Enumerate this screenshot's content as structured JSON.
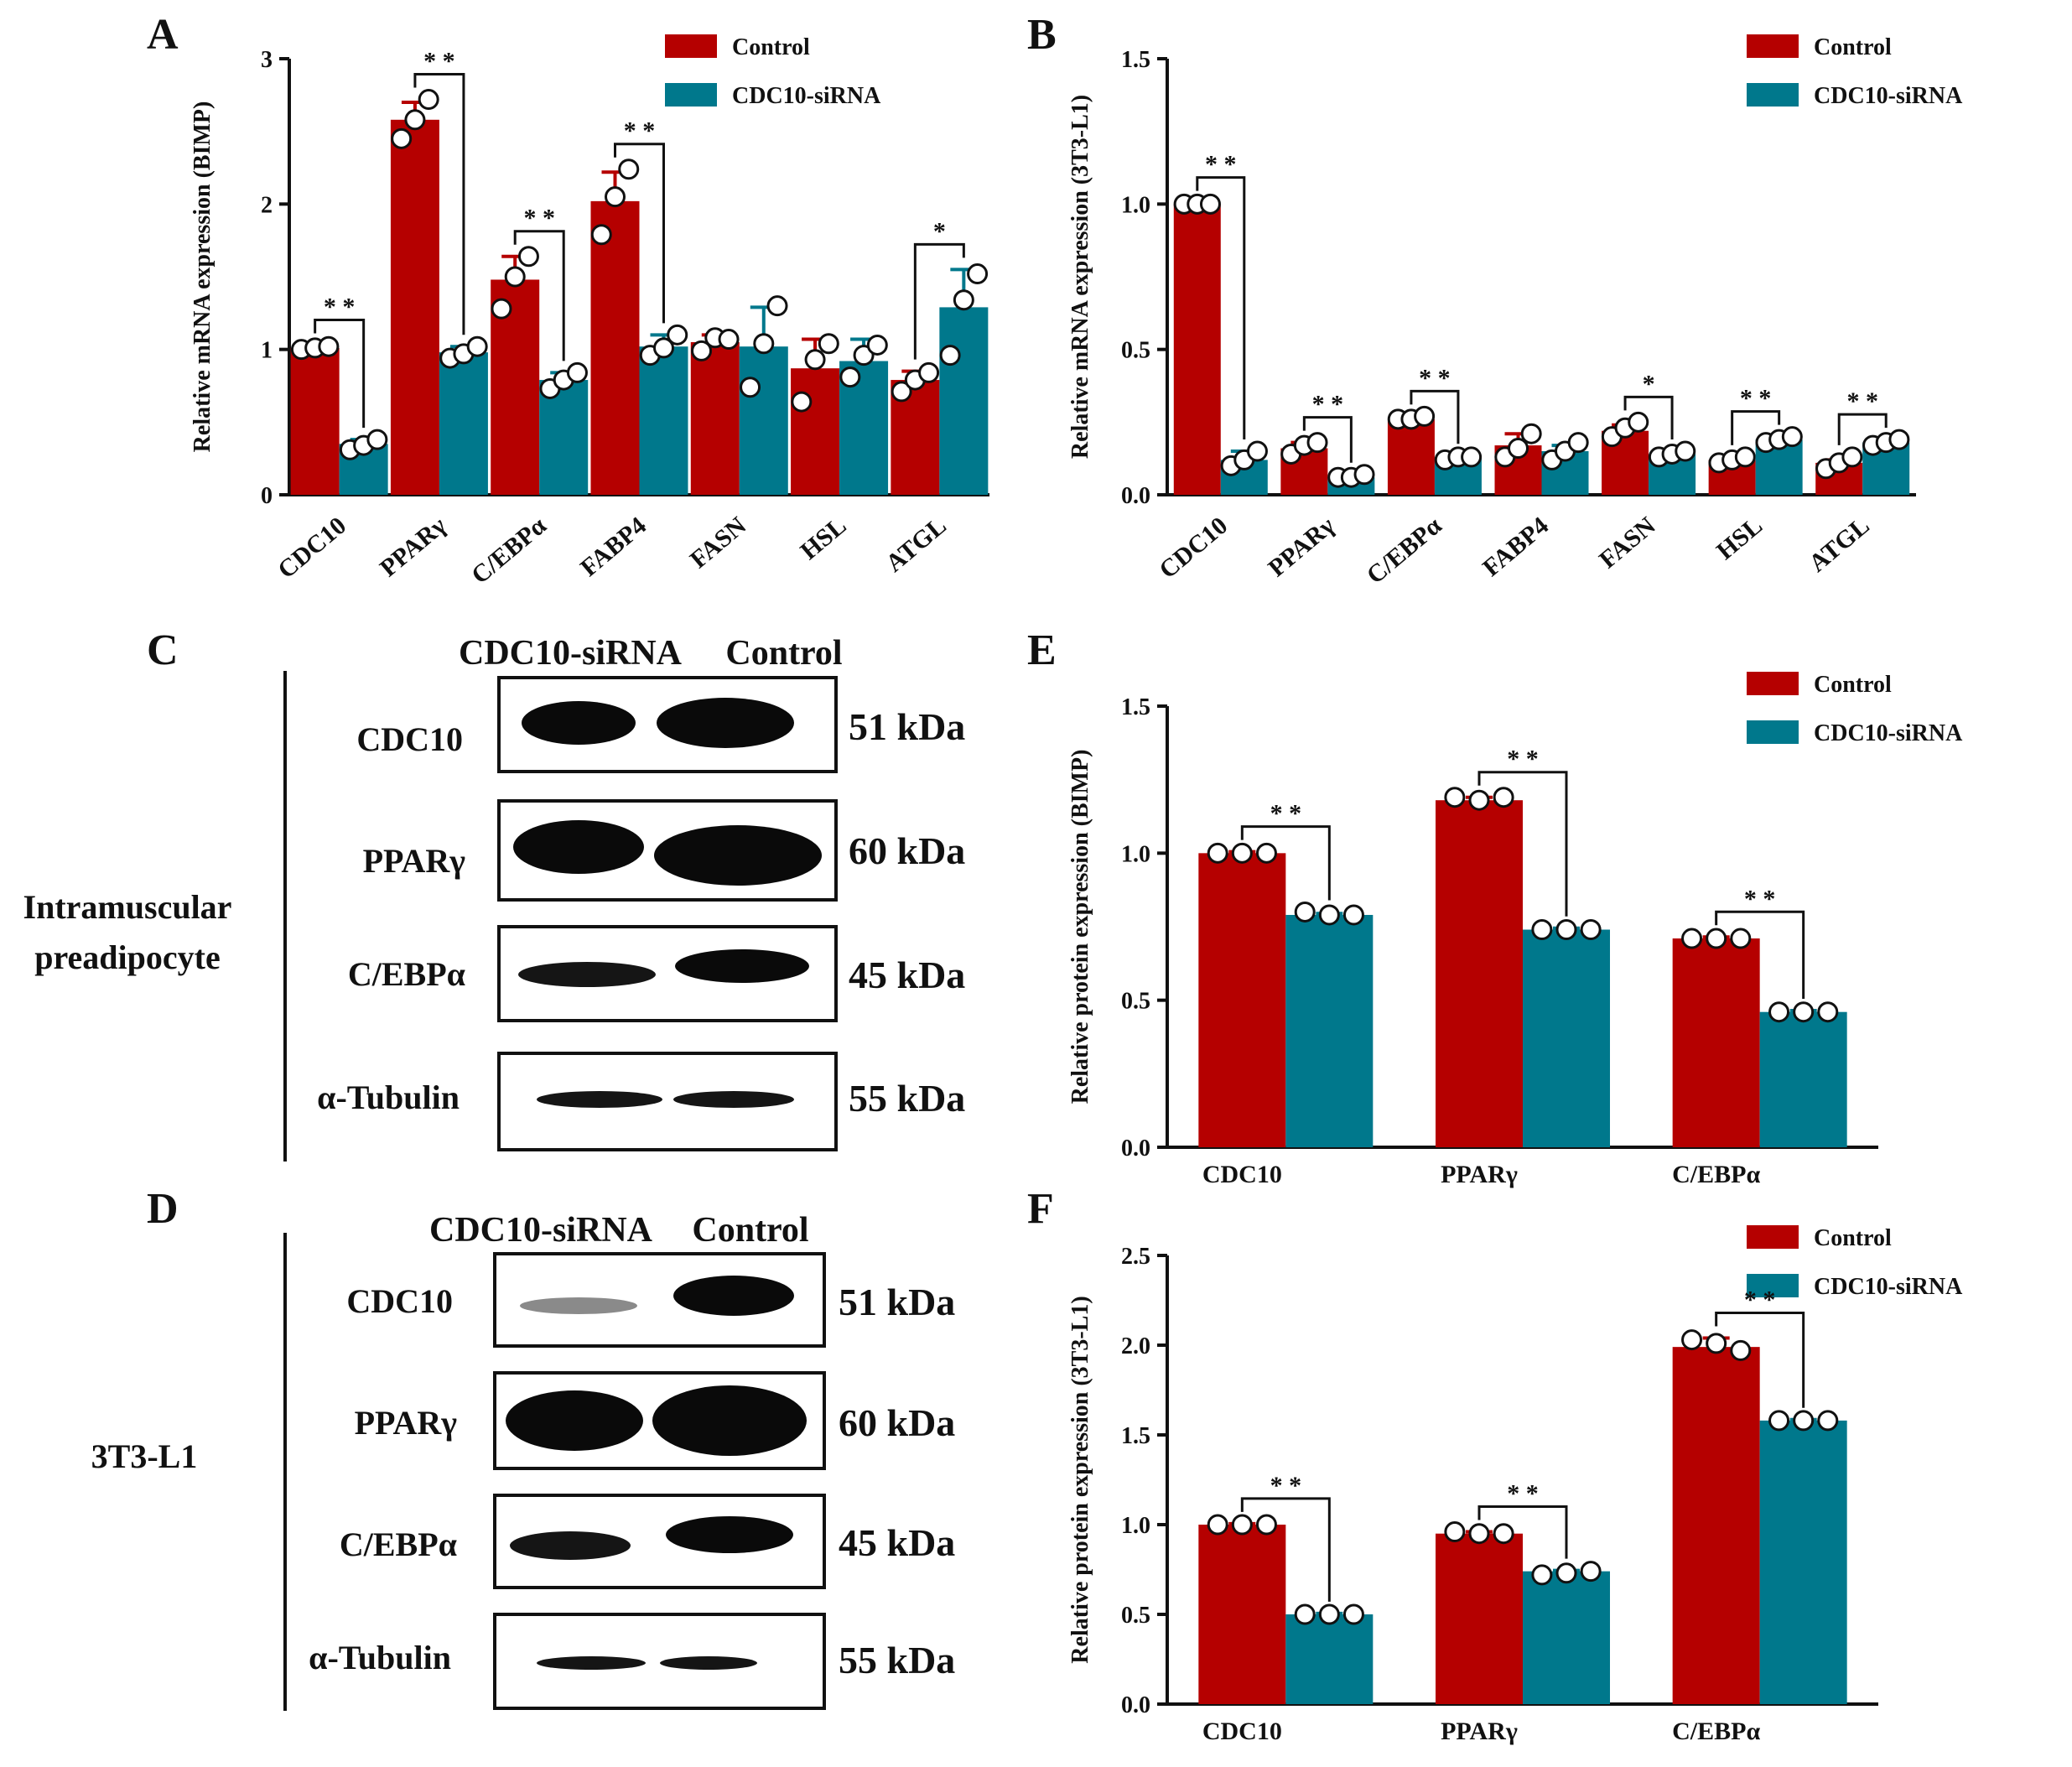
{
  "figure": {
    "panels": {
      "A": "A",
      "B": "B",
      "C": "C",
      "D": "D",
      "E": "E",
      "F": "F"
    },
    "colors": {
      "control": "#b50000",
      "sirna": "#00788c",
      "band": "#0a0a0a"
    }
  },
  "blots": [
    {
      "letter_key": "C",
      "cell_label": [
        "Intramuscular",
        "preadipocyte"
      ],
      "lane_labels": [
        "CDC10-siRNA",
        "Control"
      ],
      "rows": [
        {
          "name": "CDC10",
          "kda": "51 kDa"
        },
        {
          "name": "PPARγ",
          "kda": "60 kDa"
        },
        {
          "name": "C/EBPα",
          "kda": "45 kDa"
        },
        {
          "name": "α-Tubulin",
          "kda": "55 kDa"
        }
      ]
    },
    {
      "letter_key": "D",
      "cell_label": [
        "3T3-L1"
      ],
      "lane_labels": [
        "CDC10-siRNA",
        "Control"
      ],
      "rows": [
        {
          "name": "CDC10",
          "kda": "51 kDa"
        },
        {
          "name": "PPARγ",
          "kda": "60 kDa"
        },
        {
          "name": "C/EBPα",
          "kda": "45 kDa"
        },
        {
          "name": "α-Tubulin",
          "kda": "55 kDa"
        }
      ]
    }
  ],
  "chart_data": [
    {
      "panel": "A",
      "type": "bar",
      "ylabel": "Relative mRNA  expression (BIMP)",
      "ylim": [
        0,
        3
      ],
      "yticks": [
        "0",
        "1",
        "2",
        "3"
      ],
      "categories": [
        "CDC10",
        "PPARγ",
        "C/EBPα",
        "FABP4",
        "FASN",
        "HSL",
        "ATGL"
      ],
      "legend": "top-right",
      "series": [
        {
          "name": "Control",
          "values": [
            1.01,
            2.58,
            1.48,
            2.02,
            1.05,
            0.87,
            0.79
          ],
          "errors": [
            0.02,
            0.12,
            0.16,
            0.2,
            0.05,
            0.2,
            0.06
          ],
          "points": [
            [
              1.0,
              1.01,
              1.02
            ],
            [
              2.45,
              2.58,
              2.72
            ],
            [
              1.28,
              1.5,
              1.64
            ],
            [
              1.79,
              2.05,
              2.24
            ],
            [
              0.99,
              1.08,
              1.07
            ],
            [
              0.64,
              0.93,
              1.04
            ],
            [
              0.71,
              0.79,
              0.84
            ]
          ]
        },
        {
          "name": "CDC10-siRNA",
          "values": [
            0.35,
            0.98,
            0.79,
            1.02,
            1.02,
            0.92,
            1.29
          ],
          "errors": [
            0.03,
            0.04,
            0.05,
            0.08,
            0.27,
            0.15,
            0.26
          ],
          "points": [
            [
              0.31,
              0.34,
              0.38
            ],
            [
              0.94,
              0.97,
              1.02
            ],
            [
              0.73,
              0.79,
              0.84
            ],
            [
              0.96,
              1.01,
              1.1
            ],
            [
              0.74,
              1.04,
              1.3
            ],
            [
              0.81,
              0.96,
              1.03
            ],
            [
              0.96,
              1.34,
              1.52
            ]
          ]
        }
      ],
      "significance": [
        "* *",
        "* *",
        "* *",
        "* *",
        "",
        "",
        "*"
      ]
    },
    {
      "panel": "B",
      "type": "bar",
      "ylabel": "Relative mRNA  expression (3T3-L1)",
      "ylim": [
        0,
        1.5
      ],
      "yticks": [
        "0.0",
        "0.5",
        "1.0",
        "1.5"
      ],
      "categories": [
        "CDC10",
        "PPARγ",
        "C/EBPα",
        "FABP4",
        "FASN",
        "HSL",
        "ATGL"
      ],
      "legend": "top-right",
      "series": [
        {
          "name": "Control",
          "values": [
            1.0,
            0.16,
            0.26,
            0.17,
            0.22,
            0.12,
            0.11
          ],
          "errors": [
            0.005,
            0.02,
            0.01,
            0.04,
            0.02,
            0.01,
            0.01
          ],
          "points": [
            [
              1.0,
              1.0,
              1.0
            ],
            [
              0.14,
              0.17,
              0.18
            ],
            [
              0.26,
              0.26,
              0.27
            ],
            [
              0.13,
              0.16,
              0.21
            ],
            [
              0.2,
              0.23,
              0.25
            ],
            [
              0.11,
              0.12,
              0.13
            ],
            [
              0.09,
              0.11,
              0.13
            ]
          ]
        },
        {
          "name": "CDC10-siRNA",
          "values": [
            0.12,
            0.06,
            0.13,
            0.15,
            0.14,
            0.19,
            0.18
          ],
          "errors": [
            0.03,
            0.01,
            0.005,
            0.02,
            0.01,
            0.01,
            0.005
          ],
          "points": [
            [
              0.1,
              0.12,
              0.15
            ],
            [
              0.06,
              0.06,
              0.07
            ],
            [
              0.12,
              0.13,
              0.13
            ],
            [
              0.12,
              0.15,
              0.18
            ],
            [
              0.13,
              0.14,
              0.15
            ],
            [
              0.18,
              0.19,
              0.2
            ],
            [
              0.17,
              0.18,
              0.19
            ]
          ]
        }
      ],
      "significance": [
        "* *",
        "* *",
        "* *",
        "",
        "*",
        "* *",
        "* *"
      ]
    },
    {
      "panel": "E",
      "type": "bar",
      "ylabel": "Relative protein expression (BIMP)",
      "ylim": [
        0,
        1.5
      ],
      "yticks": [
        "0.0",
        "0.5",
        "1.0",
        "1.5"
      ],
      "categories": [
        "CDC10",
        "PPARγ",
        "C/EBPα"
      ],
      "legend": "top-right",
      "series": [
        {
          "name": "Control",
          "values": [
            1.0,
            1.18,
            0.71
          ],
          "errors": [
            0.005,
            0.01,
            0.005
          ],
          "points": [
            [
              1.0,
              1.0,
              1.0
            ],
            [
              1.19,
              1.18,
              1.19
            ],
            [
              0.71,
              0.71,
              0.71
            ]
          ]
        },
        {
          "name": "CDC10-siRNA",
          "values": [
            0.79,
            0.74,
            0.46
          ],
          "errors": [
            0.005,
            0.005,
            0.005
          ],
          "points": [
            [
              0.8,
              0.79,
              0.79
            ],
            [
              0.74,
              0.74,
              0.74
            ],
            [
              0.46,
              0.46,
              0.46
            ]
          ]
        }
      ],
      "significance": [
        "* *",
        "* *",
        "* *"
      ]
    },
    {
      "panel": "F",
      "type": "bar",
      "ylabel": "Relative protein expression (3T3-L1)",
      "ylim": [
        0,
        2.5
      ],
      "yticks": [
        "0.0",
        "0.5",
        "1.0",
        "1.5",
        "2.0",
        "2.5"
      ],
      "categories": [
        "CDC10",
        "PPARγ",
        "C/EBPα"
      ],
      "legend": "top-right",
      "series": [
        {
          "name": "Control",
          "values": [
            1.0,
            0.95,
            1.99
          ],
          "errors": [
            0.005,
            0.01,
            0.05
          ],
          "points": [
            [
              1.0,
              1.0,
              1.0
            ],
            [
              0.96,
              0.95,
              0.95
            ],
            [
              2.03,
              2.01,
              1.97
            ]
          ]
        },
        {
          "name": "CDC10-siRNA",
          "values": [
            0.5,
            0.74,
            1.58
          ],
          "errors": [
            0.005,
            0.005,
            0.005
          ],
          "points": [
            [
              0.5,
              0.5,
              0.5
            ],
            [
              0.72,
              0.73,
              0.74
            ],
            [
              1.58,
              1.58,
              1.58
            ]
          ]
        }
      ],
      "significance": [
        "* *",
        "* *",
        "* *"
      ]
    }
  ]
}
